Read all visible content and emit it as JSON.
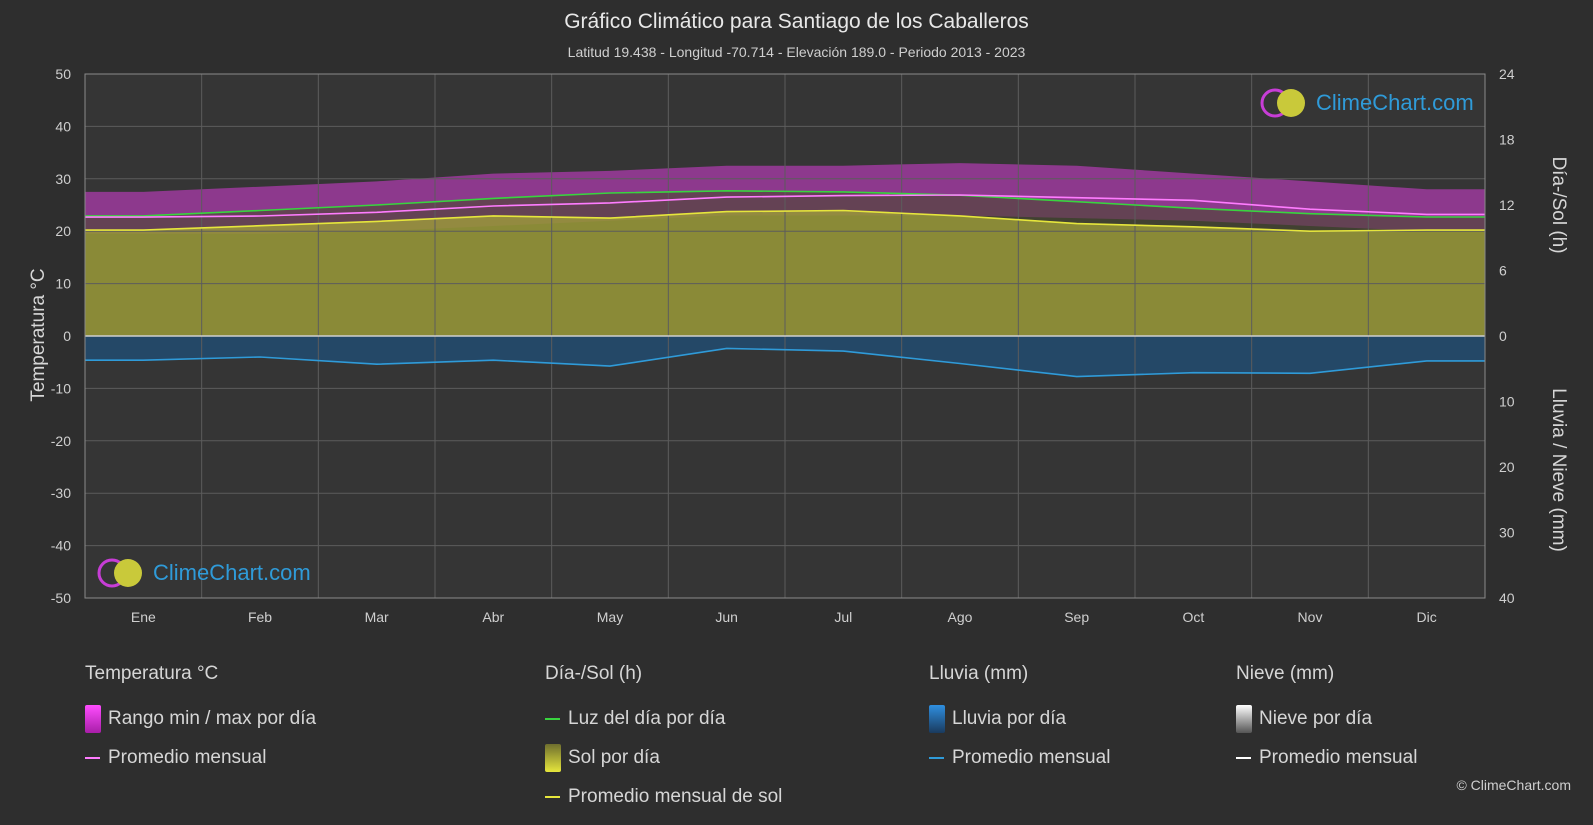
{
  "title": "Gráfico Climático para Santiago de los Caballeros",
  "subtitle": "Latitud 19.438 - Longitud -70.714 - Elevación 189.0 - Periodo 2013 - 2023",
  "brand": "ClimeChart.com",
  "copyright": "© ClimeChart.com",
  "legend": {
    "temp": {
      "header": "Temperatura °C",
      "range": "Rango min / max por día",
      "avg": "Promedio mensual"
    },
    "sun": {
      "header": "Día-/Sol (h)",
      "daylight": "Luz del día por día",
      "sunshine": "Sol por día",
      "sun_avg": "Promedio mensual de sol"
    },
    "rain": {
      "header": "Lluvia (mm)",
      "per_day": "Lluvia por día",
      "avg": "Promedio mensual"
    },
    "snow": {
      "header": "Nieve (mm)",
      "per_day": "Nieve por día",
      "avg": "Promedio mensual"
    }
  },
  "colors": {
    "background": "#2e2e2e",
    "temp_range": "#d63dd6",
    "temp_avg": "#ff7cff",
    "daylight": "#39d43f",
    "sunshine_fill": "#a3a33a",
    "sun_avg": "#e6e63c",
    "rain": "#2f8fe0",
    "rain_avg": "#2f9bd9",
    "snow": "#ffffff"
  },
  "chart_data": {
    "type": "line",
    "categories": [
      "Ene",
      "Feb",
      "Mar",
      "Abr",
      "May",
      "Jun",
      "Jul",
      "Ago",
      "Sep",
      "Oct",
      "Nov",
      "Dic"
    ],
    "y_left": {
      "label": "Temperatura °C",
      "ylim": [
        -50,
        50
      ],
      "ticks": [
        "50",
        "40",
        "30",
        "20",
        "10",
        "0",
        "-10",
        "-20",
        "-30",
        "-40",
        "-50"
      ]
    },
    "y_right_top": {
      "label": "Día-/Sol (h)",
      "ylim": [
        0,
        24
      ],
      "ticks": [
        "24",
        "18",
        "12",
        "6",
        "0"
      ]
    },
    "y_right_bottom": {
      "label": "Lluvia / Nieve (mm)",
      "ylim": [
        0,
        40
      ],
      "ticks": [
        "0",
        "10",
        "20",
        "30",
        "40"
      ]
    },
    "grid": true,
    "series": [
      {
        "name": "Promedio mensual",
        "axis": "temp",
        "values": [
          22.7,
          22.9,
          23.6,
          24.8,
          25.4,
          26.5,
          26.8,
          26.9,
          26.4,
          25.9,
          24.2,
          23.2
        ]
      },
      {
        "name": "Luz del día por día",
        "axis": "sun",
        "values": [
          11.0,
          11.5,
          12.0,
          12.6,
          13.1,
          13.3,
          13.2,
          12.9,
          12.3,
          11.7,
          11.2,
          10.9
        ]
      },
      {
        "name": "Promedio mensual de sol",
        "axis": "sun",
        "values": [
          9.7,
          10.1,
          10.5,
          11.0,
          10.8,
          11.4,
          11.5,
          11.0,
          10.3,
          10.0,
          9.6,
          9.7
        ]
      },
      {
        "name": "Lluvia Promedio mensual",
        "axis": "rain",
        "values": [
          3.7,
          3.2,
          4.3,
          3.7,
          4.6,
          1.9,
          2.3,
          4.2,
          6.2,
          5.6,
          5.7,
          3.8
        ]
      },
      {
        "name": "Rango min / max por día",
        "axis": "temp",
        "min": [
          19.5,
          19.5,
          20.0,
          21.0,
          22.0,
          23.0,
          23.0,
          23.0,
          22.5,
          22.0,
          21.0,
          20.0
        ],
        "max": [
          27.5,
          28.5,
          29.5,
          31.0,
          31.5,
          32.5,
          32.5,
          33.0,
          32.5,
          31.0,
          29.5,
          28.0
        ]
      }
    ]
  }
}
